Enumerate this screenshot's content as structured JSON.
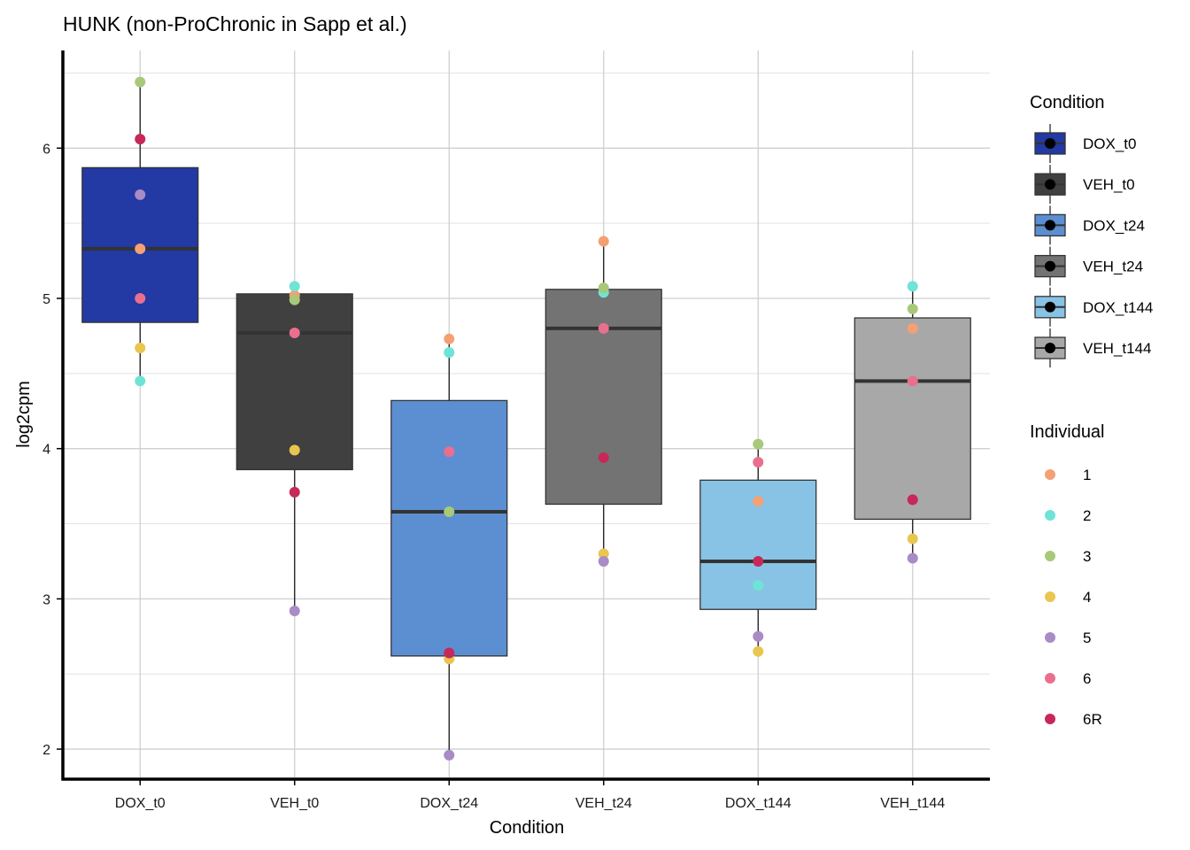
{
  "chart_data": {
    "type": "boxplot",
    "title": "HUNK (non-ProChronic in Sapp et al.)",
    "xlabel": "Condition",
    "ylabel": "log2cpm",
    "ylim": [
      1.8,
      6.65
    ],
    "yticks": [
      2,
      3,
      4,
      5,
      6
    ],
    "ytick_labels": [
      "2",
      "3",
      "4",
      "5",
      "6"
    ],
    "grid": true,
    "categories": [
      "DOX_t0",
      "VEH_t0",
      "DOX_t24",
      "VEH_t24",
      "DOX_t144",
      "VEH_t144"
    ],
    "condition_colors": {
      "DOX_t0": "#2339a3",
      "VEH_t0": "#404040",
      "DOX_t24": "#5b8fd1",
      "VEH_t24": "#737373",
      "DOX_t144": "#88c3e5",
      "VEH_t144": "#a8a8a8"
    },
    "boxes": [
      {
        "condition": "DOX_t0",
        "min": 4.45,
        "q1": 4.84,
        "median": 5.33,
        "q3": 5.87,
        "max": 6.44
      },
      {
        "condition": "VEH_t0",
        "min": 2.92,
        "q1": 3.86,
        "median": 4.77,
        "q3": 5.03,
        "max": 5.08
      },
      {
        "condition": "DOX_t24",
        "min": 1.96,
        "q1": 2.62,
        "median": 3.58,
        "q3": 4.32,
        "max": 4.73
      },
      {
        "condition": "VEH_t24",
        "min": 3.25,
        "q1": 3.63,
        "median": 4.8,
        "q3": 5.06,
        "max": 5.38
      },
      {
        "condition": "DOX_t144",
        "min": 2.65,
        "q1": 2.93,
        "median": 3.25,
        "q3": 3.79,
        "max": 4.03
      },
      {
        "condition": "VEH_t144",
        "min": 3.27,
        "q1": 3.53,
        "median": 4.45,
        "q3": 4.87,
        "max": 5.08
      }
    ],
    "individual_colors": {
      "1": "#f4a074",
      "2": "#6fe3d6",
      "3": "#a8c979",
      "4": "#e9c64f",
      "5": "#a98bc5",
      "6": "#ea6f8f",
      "6R": "#c7285a"
    },
    "points": [
      {
        "condition": "DOX_t0",
        "individual": "1",
        "value": 5.33
      },
      {
        "condition": "DOX_t0",
        "individual": "2",
        "value": 4.45
      },
      {
        "condition": "DOX_t0",
        "individual": "3",
        "value": 6.44
      },
      {
        "condition": "DOX_t0",
        "individual": "4",
        "value": 4.67
      },
      {
        "condition": "DOX_t0",
        "individual": "5",
        "value": 5.69
      },
      {
        "condition": "DOX_t0",
        "individual": "6",
        "value": 5.0
      },
      {
        "condition": "DOX_t0",
        "individual": "6R",
        "value": 6.06
      },
      {
        "condition": "VEH_t0",
        "individual": "1",
        "value": 5.02
      },
      {
        "condition": "VEH_t0",
        "individual": "2",
        "value": 5.08
      },
      {
        "condition": "VEH_t0",
        "individual": "3",
        "value": 4.99
      },
      {
        "condition": "VEH_t0",
        "individual": "4",
        "value": 3.99
      },
      {
        "condition": "VEH_t0",
        "individual": "5",
        "value": 2.92
      },
      {
        "condition": "VEH_t0",
        "individual": "6",
        "value": 4.77
      },
      {
        "condition": "VEH_t0",
        "individual": "6R",
        "value": 3.71
      },
      {
        "condition": "DOX_t24",
        "individual": "1",
        "value": 4.73
      },
      {
        "condition": "DOX_t24",
        "individual": "2",
        "value": 4.64
      },
      {
        "condition": "DOX_t24",
        "individual": "3",
        "value": 3.58
      },
      {
        "condition": "DOX_t24",
        "individual": "4",
        "value": 2.6
      },
      {
        "condition": "DOX_t24",
        "individual": "5",
        "value": 1.96
      },
      {
        "condition": "DOX_t24",
        "individual": "6",
        "value": 3.98
      },
      {
        "condition": "DOX_t24",
        "individual": "6R",
        "value": 2.64
      },
      {
        "condition": "VEH_t24",
        "individual": "1",
        "value": 5.38
      },
      {
        "condition": "VEH_t24",
        "individual": "2",
        "value": 5.04
      },
      {
        "condition": "VEH_t24",
        "individual": "3",
        "value": 5.07
      },
      {
        "condition": "VEH_t24",
        "individual": "4",
        "value": 3.3
      },
      {
        "condition": "VEH_t24",
        "individual": "5",
        "value": 3.25
      },
      {
        "condition": "VEH_t24",
        "individual": "6",
        "value": 4.8
      },
      {
        "condition": "VEH_t24",
        "individual": "6R",
        "value": 3.94
      },
      {
        "condition": "DOX_t144",
        "individual": "1",
        "value": 3.65
      },
      {
        "condition": "DOX_t144",
        "individual": "2",
        "value": 3.09
      },
      {
        "condition": "DOX_t144",
        "individual": "3",
        "value": 4.03
      },
      {
        "condition": "DOX_t144",
        "individual": "4",
        "value": 2.65
      },
      {
        "condition": "DOX_t144",
        "individual": "5",
        "value": 2.75
      },
      {
        "condition": "DOX_t144",
        "individual": "6",
        "value": 3.91
      },
      {
        "condition": "DOX_t144",
        "individual": "6R",
        "value": 3.25
      },
      {
        "condition": "VEH_t144",
        "individual": "1",
        "value": 4.8
      },
      {
        "condition": "VEH_t144",
        "individual": "2",
        "value": 5.08
      },
      {
        "condition": "VEH_t144",
        "individual": "3",
        "value": 4.93
      },
      {
        "condition": "VEH_t144",
        "individual": "4",
        "value": 3.4
      },
      {
        "condition": "VEH_t144",
        "individual": "5",
        "value": 3.27
      },
      {
        "condition": "VEH_t144",
        "individual": "6",
        "value": 4.45
      },
      {
        "condition": "VEH_t144",
        "individual": "6R",
        "value": 3.66
      }
    ],
    "legend_condition": {
      "title": "Condition",
      "entries": [
        "DOX_t0",
        "VEH_t0",
        "DOX_t24",
        "VEH_t24",
        "DOX_t144",
        "VEH_t144"
      ]
    },
    "legend_individual": {
      "title": "Individual",
      "entries": [
        "1",
        "2",
        "3",
        "4",
        "5",
        "6",
        "6R"
      ]
    },
    "legend_position": "right"
  }
}
